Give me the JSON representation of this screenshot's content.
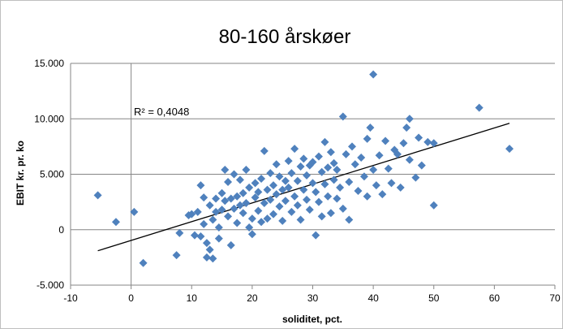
{
  "chart_data": {
    "type": "scatter",
    "title": "80-160 årskøer",
    "xlabel": "soliditet, pct.",
    "ylabel": "EBIT kr. pr. ko",
    "xlim": [
      -10,
      70
    ],
    "ylim": [
      -5000,
      15000
    ],
    "x_ticks": [
      -10,
      0,
      10,
      20,
      30,
      40,
      50,
      60,
      70
    ],
    "x_tick_labels": [
      "-10",
      "0",
      "10",
      "20",
      "30",
      "40",
      "50",
      "60",
      "70"
    ],
    "y_ticks": [
      -5000,
      0,
      5000,
      10000,
      15000
    ],
    "y_tick_labels": [
      "-5.000",
      "0",
      "5.000",
      "10.000",
      "15.000"
    ],
    "grid": "horizontal",
    "annotation": "R² = 0,4048",
    "marker_color": "#4f81bd",
    "trendline": {
      "x": [
        -5.5,
        62.5
      ],
      "y": [
        -1900,
        9600
      ],
      "color": "#000000"
    },
    "points": [
      [
        -5.5,
        3100
      ],
      [
        -2.5,
        700
      ],
      [
        0.5,
        1600
      ],
      [
        2,
        -3000
      ],
      [
        7.5,
        -2300
      ],
      [
        8,
        -300
      ],
      [
        9.5,
        1300
      ],
      [
        10,
        1400
      ],
      [
        10.5,
        -500
      ],
      [
        11,
        1600
      ],
      [
        11.5,
        4000
      ],
      [
        11.5,
        -600
      ],
      [
        12,
        2900
      ],
      [
        12,
        500
      ],
      [
        12.5,
        -1200
      ],
      [
        12.5,
        -2500
      ],
      [
        13,
        -1800
      ],
      [
        13,
        2200
      ],
      [
        13.5,
        900
      ],
      [
        13.5,
        -2600
      ],
      [
        14,
        1600
      ],
      [
        14,
        2800
      ],
      [
        14.5,
        200
      ],
      [
        14.5,
        -800
      ],
      [
        15,
        3300
      ],
      [
        15,
        1800
      ],
      [
        15.5,
        5400
      ],
      [
        15.5,
        2600
      ],
      [
        16,
        1200
      ],
      [
        16,
        4300
      ],
      [
        16.5,
        2800
      ],
      [
        16.5,
        -1400
      ],
      [
        17,
        5000
      ],
      [
        17,
        1900
      ],
      [
        17.5,
        3000
      ],
      [
        17.5,
        600
      ],
      [
        18,
        2200
      ],
      [
        18,
        4500
      ],
      [
        18.5,
        3300
      ],
      [
        18.5,
        1500
      ],
      [
        19,
        5400
      ],
      [
        19,
        2400
      ],
      [
        19.5,
        200
      ],
      [
        19.5,
        3800
      ],
      [
        20,
        -400
      ],
      [
        20,
        1000
      ],
      [
        20.5,
        2900
      ],
      [
        20.5,
        4200
      ],
      [
        21,
        3400
      ],
      [
        21,
        1700
      ],
      [
        21.5,
        4600
      ],
      [
        21.5,
        700
      ],
      [
        22,
        7100
      ],
      [
        22,
        2400
      ],
      [
        22.5,
        3600
      ],
      [
        22.5,
        1000
      ],
      [
        23,
        5100
      ],
      [
        23,
        2700
      ],
      [
        23.5,
        4000
      ],
      [
        23.5,
        1400
      ],
      [
        24,
        3200
      ],
      [
        24,
        5900
      ],
      [
        24.5,
        2100
      ],
      [
        24.5,
        4800
      ],
      [
        25,
        3600
      ],
      [
        25,
        800
      ],
      [
        25.5,
        4400
      ],
      [
        25.5,
        2600
      ],
      [
        26,
        6200
      ],
      [
        26,
        3800
      ],
      [
        26.5,
        1600
      ],
      [
        26.5,
        5100
      ],
      [
        27,
        7300
      ],
      [
        27,
        3000
      ],
      [
        27.5,
        4400
      ],
      [
        27.5,
        2200
      ],
      [
        28,
        5700
      ],
      [
        28,
        900
      ],
      [
        28.5,
        3600
      ],
      [
        28.5,
        6400
      ],
      [
        29,
        4900
      ],
      [
        29,
        2700
      ],
      [
        29.5,
        5800
      ],
      [
        29.5,
        1800
      ],
      [
        30,
        4200
      ],
      [
        30,
        6100
      ],
      [
        30.5,
        -500
      ],
      [
        30.5,
        3400
      ],
      [
        31,
        6600
      ],
      [
        31,
        2500
      ],
      [
        31.5,
        5200
      ],
      [
        31.5,
        1200
      ],
      [
        32,
        7900
      ],
      [
        32,
        4100
      ],
      [
        32.5,
        5600
      ],
      [
        32.5,
        3000
      ],
      [
        33,
        7000
      ],
      [
        33,
        1500
      ],
      [
        33.5,
        4500
      ],
      [
        33.5,
        6000
      ],
      [
        34,
        2800
      ],
      [
        34,
        5400
      ],
      [
        34.5,
        3800
      ],
      [
        35,
        10200
      ],
      [
        35,
        1900
      ],
      [
        35.5,
        6800
      ],
      [
        36,
        900
      ],
      [
        36,
        4300
      ],
      [
        36.5,
        7500
      ],
      [
        37,
        5900
      ],
      [
        37.5,
        3500
      ],
      [
        38,
        6500
      ],
      [
        38.5,
        4800
      ],
      [
        39,
        8200
      ],
      [
        39,
        3000
      ],
      [
        39.5,
        9200
      ],
      [
        40,
        14000
      ],
      [
        40,
        5400
      ],
      [
        40.5,
        4000
      ],
      [
        41,
        6700
      ],
      [
        41.5,
        3200
      ],
      [
        42,
        8000
      ],
      [
        42.5,
        5500
      ],
      [
        43,
        4200
      ],
      [
        43.5,
        7200
      ],
      [
        44,
        6800
      ],
      [
        44.5,
        3800
      ],
      [
        45,
        7800
      ],
      [
        45.5,
        9200
      ],
      [
        46,
        10000
      ],
      [
        46,
        6300
      ],
      [
        47,
        4700
      ],
      [
        47.5,
        8300
      ],
      [
        48,
        5800
      ],
      [
        49,
        7900
      ],
      [
        50,
        7800
      ],
      [
        50,
        2200
      ],
      [
        57.5,
        11000
      ],
      [
        62.5,
        7300
      ]
    ]
  }
}
